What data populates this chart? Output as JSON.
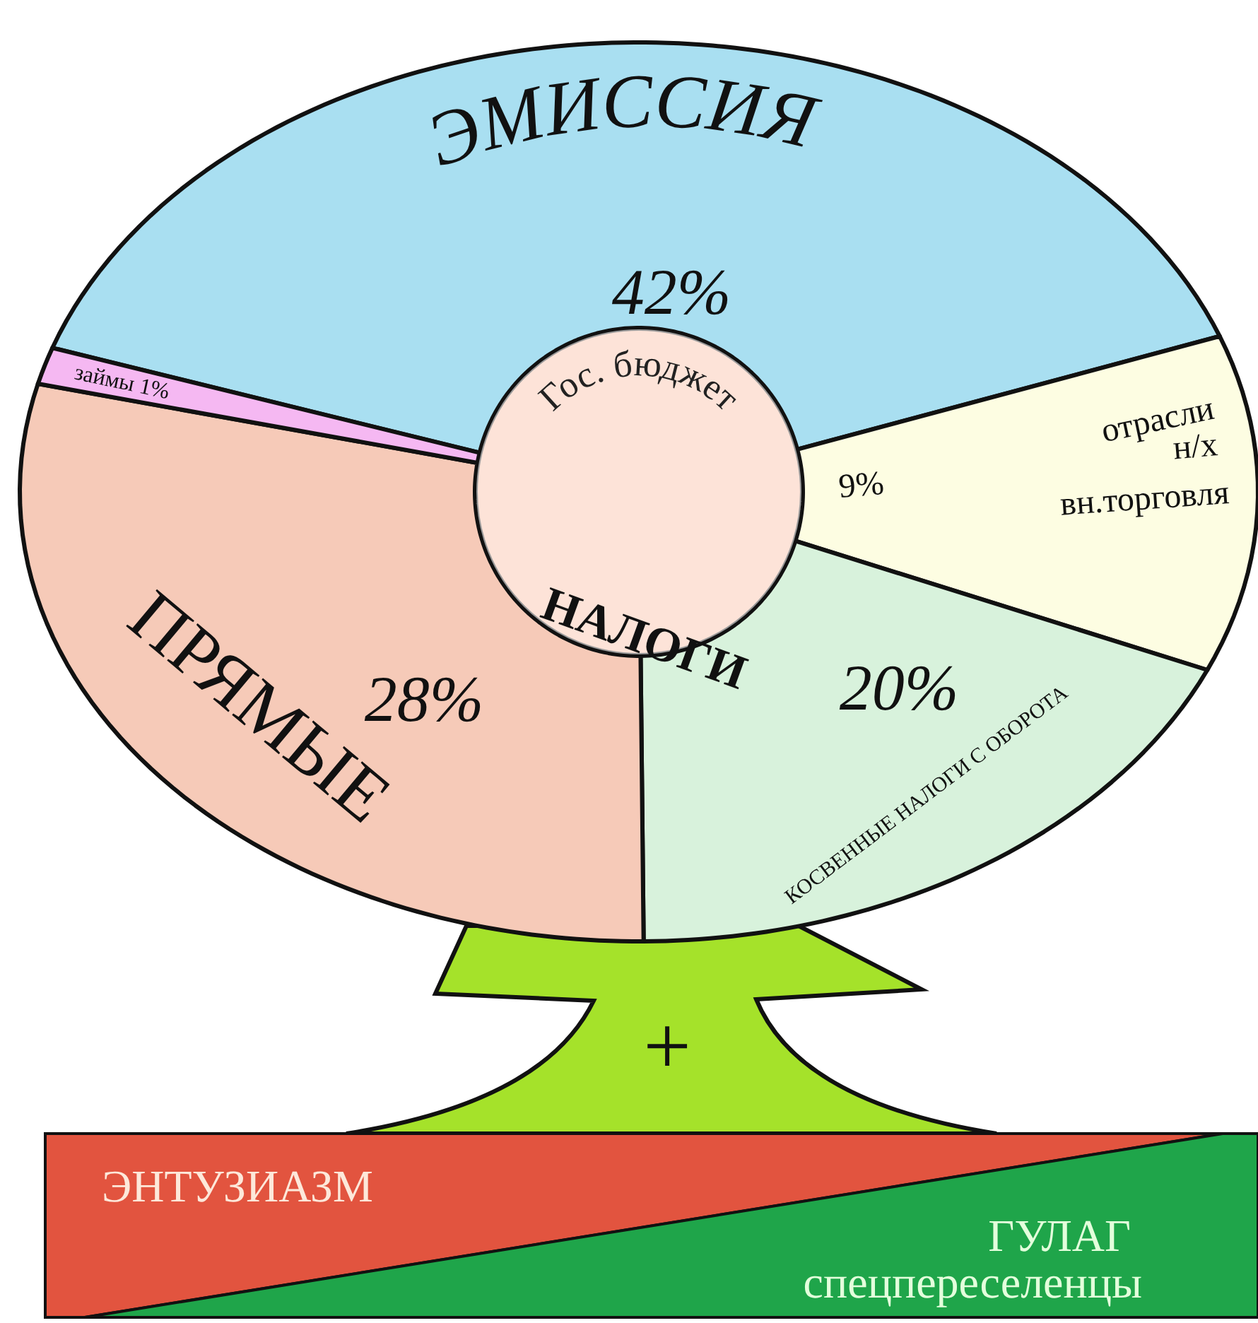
{
  "chart_data": {
    "type": "donut",
    "categories": [
      "ЭМИССИЯ",
      "отрасли н/х вн.торговля",
      "КОСВЕННЫЕ НАЛОГИ С ОБОРОТА",
      "ПРЯМЫЕ",
      "займы"
    ],
    "values": [
      42,
      9,
      20,
      28,
      1
    ],
    "value_labels": [
      "42%",
      "9%",
      "20%",
      "28%",
      "1%"
    ],
    "colors": [
      "#a9dff1",
      "#fdfde2",
      "#d8f2dc",
      "#f6cab8",
      "#f5b8f2"
    ],
    "annotations": [
      "Гос. бюджет",
      "НАЛОГИ",
      "+",
      "ЭНТУЗИАЗМ",
      "ГУЛАГ",
      "спецпереселенцы"
    ]
  }
}
